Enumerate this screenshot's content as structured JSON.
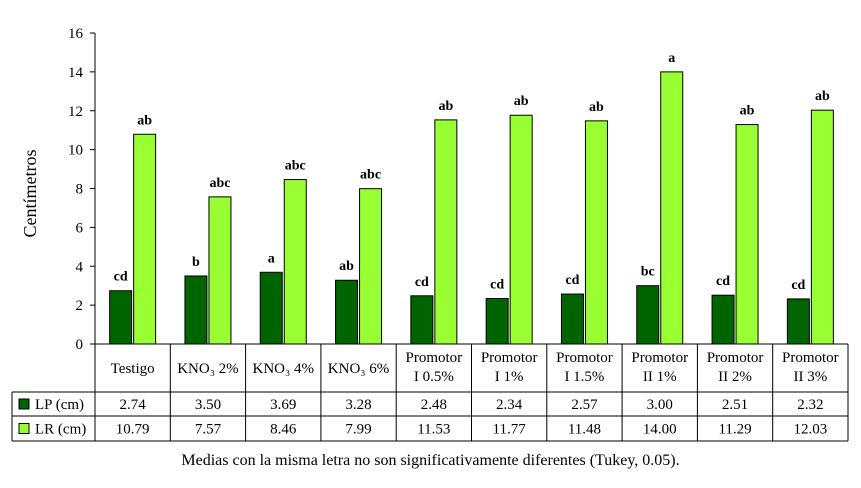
{
  "chart_data": {
    "type": "bar",
    "title": "",
    "xlabel": "",
    "ylabel": "Centímetros",
    "ylim": [
      0,
      16
    ],
    "yticks": [
      0,
      2,
      4,
      6,
      8,
      10,
      12,
      14,
      16
    ],
    "grid": false,
    "legend": "data-table",
    "categories": [
      [
        "Testigo"
      ],
      [
        "KNO₃ 2%"
      ],
      [
        "KNO₃ 4%"
      ],
      [
        "KNO₃ 6%"
      ],
      [
        "Promotor",
        "I 0.5%"
      ],
      [
        "Promotor",
        "I 1%"
      ],
      [
        "Promotor",
        "I 1.5%"
      ],
      [
        "Promotor",
        "II 1%"
      ],
      [
        "Promotor",
        "II 2%"
      ],
      [
        "Promotor",
        "II 3%"
      ]
    ],
    "series": [
      {
        "name": "LP (cm)",
        "color": "#006400",
        "values": [
          2.74,
          3.5,
          3.69,
          3.28,
          2.48,
          2.34,
          2.57,
          3.0,
          2.51,
          2.32
        ],
        "display": [
          "2.74",
          "3.50",
          "3.69",
          "3.28",
          "2.48",
          "2.34",
          "2.57",
          "3.00",
          "2.51",
          "2.32"
        ],
        "letters": [
          "cd",
          "b",
          "a",
          "ab",
          "cd",
          "cd",
          "cd",
          "bc",
          "cd",
          "cd"
        ]
      },
      {
        "name": "LR (cm)",
        "color": "#99FF33",
        "values": [
          10.79,
          7.57,
          8.46,
          7.99,
          11.53,
          11.77,
          11.48,
          14.0,
          11.29,
          12.03
        ],
        "display": [
          "10.79",
          "7.57",
          "8.46",
          "7.99",
          "11.53",
          "11.77",
          "11.48",
          "14.00",
          "11.29",
          "12.03"
        ],
        "letters": [
          "ab",
          "abc",
          "abc",
          "abc",
          "ab",
          "ab",
          "ab",
          "a",
          "ab",
          "ab"
        ]
      }
    ]
  },
  "footnote": "Medias con la misma letra no son significativamente diferentes (Tukey, 0.05)."
}
